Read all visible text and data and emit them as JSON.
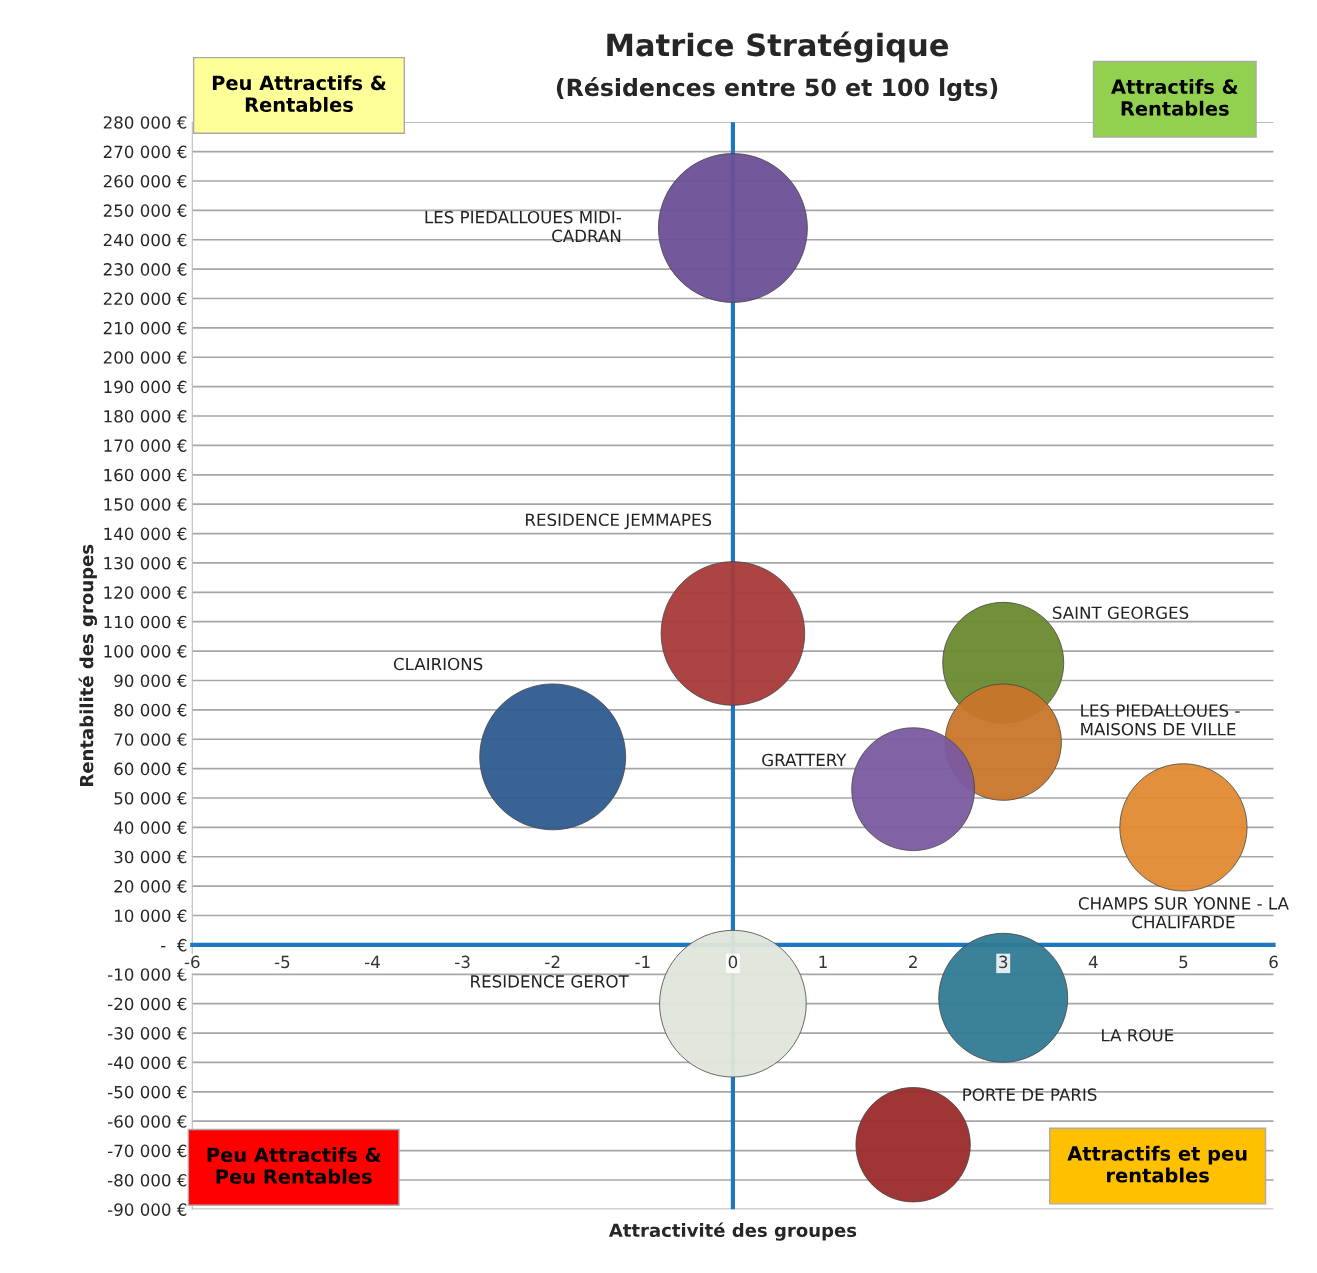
{
  "chart_data": {
    "type": "bubble",
    "title": "Matrice Stratégique",
    "subtitle": "(Résidences entre 50 et 100 lgts)",
    "xlabel": "Attractivité des groupes",
    "ylabel": "Rentabilité des groupes",
    "xlim": [
      -6,
      6
    ],
    "xticks": [
      -6,
      -5,
      -4,
      -3,
      -2,
      -1,
      0,
      1,
      2,
      3,
      4,
      5,
      6
    ],
    "ylim": [
      -90000,
      280000
    ],
    "yticks": [
      {
        "value": 280000,
        "label": "280 000 €"
      },
      {
        "value": 270000,
        "label": "270 000 €"
      },
      {
        "value": 260000,
        "label": "260 000 €"
      },
      {
        "value": 250000,
        "label": "250 000 €"
      },
      {
        "value": 240000,
        "label": "240 000 €"
      },
      {
        "value": 230000,
        "label": "230 000 €"
      },
      {
        "value": 220000,
        "label": "220 000 €"
      },
      {
        "value": 210000,
        "label": "210 000 €"
      },
      {
        "value": 200000,
        "label": "200 000 €"
      },
      {
        "value": 190000,
        "label": "190 000 €"
      },
      {
        "value": 180000,
        "label": "180 000 €"
      },
      {
        "value": 170000,
        "label": "170 000 €"
      },
      {
        "value": 160000,
        "label": "160 000 €"
      },
      {
        "value": 150000,
        "label": "150 000 €"
      },
      {
        "value": 140000,
        "label": "140 000 €"
      },
      {
        "value": 130000,
        "label": "130 000 €"
      },
      {
        "value": 120000,
        "label": "120 000 €"
      },
      {
        "value": 110000,
        "label": "110 000 €"
      },
      {
        "value": 100000,
        "label": "100 000 €"
      },
      {
        "value": 90000,
        "label": "90 000 €"
      },
      {
        "value": 80000,
        "label": "80 000 €"
      },
      {
        "value": 70000,
        "label": "70 000 €"
      },
      {
        "value": 60000,
        "label": "60 000 €"
      },
      {
        "value": 50000,
        "label": "50 000 €"
      },
      {
        "value": 40000,
        "label": "40 000 €"
      },
      {
        "value": 30000,
        "label": "30 000 €"
      },
      {
        "value": 20000,
        "label": "20 000 €"
      },
      {
        "value": 10000,
        "label": "10 000 €"
      },
      {
        "value": 0,
        "label": "-  €"
      },
      {
        "value": -10000,
        "label": "-10 000 €"
      },
      {
        "value": -20000,
        "label": "-20 000 €"
      },
      {
        "value": -30000,
        "label": "-30 000 €"
      },
      {
        "value": -40000,
        "label": "-40 000 €"
      },
      {
        "value": -50000,
        "label": "-50 000 €"
      },
      {
        "value": -60000,
        "label": "-60 000 €"
      },
      {
        "value": -70000,
        "label": "-70 000 €"
      },
      {
        "value": -80000,
        "label": "-80 000 €"
      },
      {
        "value": -90000,
        "label": "-90 000 €"
      }
    ],
    "grid": "y",
    "legend": false,
    "ref_lines": [
      {
        "axis": "x",
        "value": 0,
        "color": "#1f77c4"
      }
    ],
    "series": [
      {
        "name": "LES PIEDALLOUES MIDI-\nCADRAN",
        "color": "#6b4f96",
        "x": [
          0
        ],
        "values": [
          244000
        ],
        "sizes": [
          1
        ]
      },
      {
        "name": "RESIDENCE JEMMAPES",
        "color": "#a83a3a",
        "x": [
          0
        ],
        "values": [
          106000
        ],
        "sizes": [
          0.93
        ]
      },
      {
        "name": "CLAIRIONS",
        "color": "#2f5b8f",
        "x": [
          -2
        ],
        "values": [
          64000
        ],
        "sizes": [
          0.96
        ]
      },
      {
        "name": "SAINT GEORGES",
        "color": "#6a8a2e",
        "x": [
          3
        ],
        "values": [
          96000
        ],
        "sizes": [
          0.66
        ]
      },
      {
        "name": "LES PIEDALLOUES -\nMAISONS DE VILLE",
        "color": "#c8762a",
        "x": [
          3
        ],
        "values": [
          69000
        ],
        "sizes": [
          0.61
        ]
      },
      {
        "name": "GRATTERY",
        "color": "#7a5aa0",
        "x": [
          2
        ],
        "values": [
          53000
        ],
        "sizes": [
          0.68
        ]
      },
      {
        "name": "CHAMPS SUR YONNE - LA\nCHALIFARDE",
        "color": "#e08a30",
        "x": [
          5
        ],
        "values": [
          40000
        ],
        "sizes": [
          0.73
        ]
      },
      {
        "name": "RESIDENCE GEROT",
        "color": "#dfe6da",
        "x": [
          0
        ],
        "values": [
          -20000
        ],
        "sizes": [
          0.97
        ]
      },
      {
        "name": "LA ROUE",
        "color": "#2f7a94",
        "x": [
          3
        ],
        "values": [
          -18000
        ],
        "sizes": [
          0.75
        ]
      },
      {
        "name": "PORTE DE PARIS",
        "color": "#9a2a2a",
        "x": [
          2
        ],
        "values": [
          -68000
        ],
        "sizes": [
          0.59
        ]
      }
    ],
    "annotations": [
      "Peu Attractifs &\nRentables",
      "Attractifs &\nRentables",
      "Peu Attractifs &\nPeu Rentables",
      "Attractifs et peu\nrentables"
    ]
  }
}
